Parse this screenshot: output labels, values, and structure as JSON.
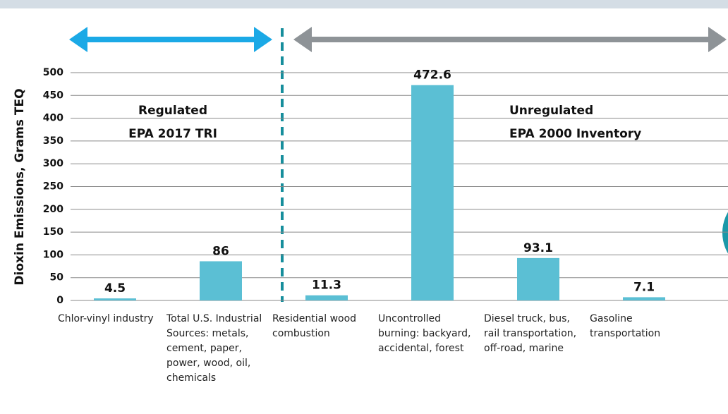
{
  "chart_data": {
    "type": "bar",
    "y_label": "Dioxin Emissions, Grams TEQ",
    "categories": [
      "Chlor-vinyl industry",
      "Total U.S. Industrial Sources: metals, cement, paper, power, wood, oil, chemicals",
      "Residential wood combustion",
      "Uncontrolled burning: backyard, accidental, forest",
      "Diesel truck, bus, rail transportation, off-road, marine",
      "Gasoline transportation"
    ],
    "values": [
      4.5,
      86,
      11.3,
      472.6,
      93.1,
      7.1
    ],
    "color": "#5bbfd4",
    "ylim": [
      0,
      500
    ],
    "yticks": [
      0,
      50,
      100,
      150,
      200,
      250,
      300,
      350,
      400,
      450,
      500
    ],
    "grid": true,
    "annotations": [
      [
        "Regulated",
        "EPA 2017 TRI"
      ],
      [
        "Unregulated",
        "EPA 2000 Inventory"
      ]
    ]
  }
}
